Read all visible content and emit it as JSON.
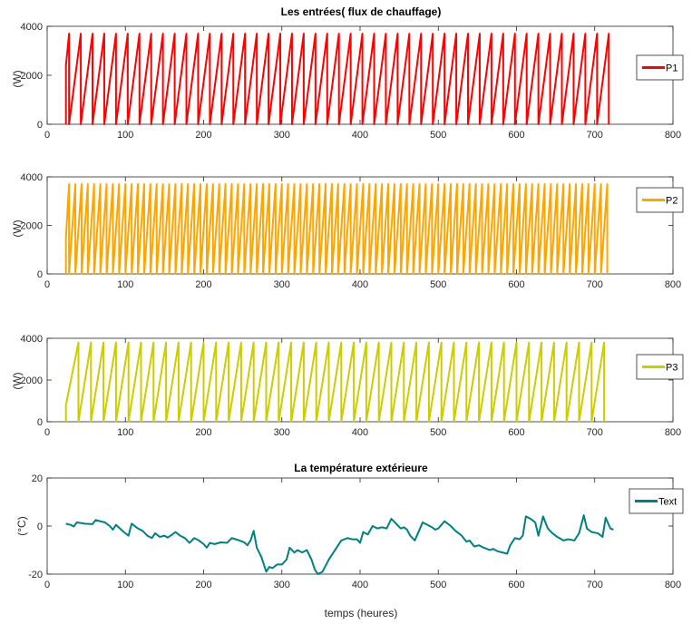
{
  "chart_data": [
    {
      "type": "line",
      "title": "Les entrées( flux de chauffage)",
      "xlabel": "",
      "ylabel": "(W)",
      "xlim": [
        0,
        800
      ],
      "ylim": [
        0,
        4000
      ],
      "xticks": [
        "0",
        "100",
        "200",
        "300",
        "400",
        "500",
        "600",
        "700",
        "800"
      ],
      "yticks": [
        "0",
        "2000",
        "4000"
      ],
      "grid": false,
      "legend": "right",
      "series": [
        {
          "name": "P1",
          "color": "#ff0000",
          "pattern": "sawtooth",
          "start": 24,
          "end": 720,
          "period": 15,
          "peak": 3700,
          "first_ramp": [
            [
              24,
              0
            ],
            [
              24,
              2400
            ],
            [
              28,
              3700
            ],
            [
              28,
              0
            ]
          ]
        }
      ]
    },
    {
      "type": "line",
      "title": "",
      "xlabel": "",
      "ylabel": "(W)",
      "xlim": [
        0,
        800
      ],
      "ylim": [
        0,
        4000
      ],
      "xticks": [
        "0",
        "100",
        "200",
        "300",
        "400",
        "500",
        "600",
        "700",
        "800"
      ],
      "yticks": [
        "0",
        "2000",
        "4000"
      ],
      "grid": false,
      "legend": "right",
      "series": [
        {
          "name": "P2",
          "color": "#ffa500",
          "pattern": "sawtooth",
          "start": 24,
          "end": 720,
          "period": 8,
          "peak": 3700,
          "first_ramp": [
            [
              24,
              0
            ],
            [
              24,
              1500
            ],
            [
              28,
              3700
            ],
            [
              28,
              0
            ]
          ]
        }
      ]
    },
    {
      "type": "line",
      "title": "",
      "xlabel": "",
      "ylabel": "(W)",
      "xlim": [
        0,
        800
      ],
      "ylim": [
        0,
        4000
      ],
      "xticks": [
        "0",
        "100",
        "200",
        "300",
        "400",
        "500",
        "600",
        "700",
        "800"
      ],
      "yticks": [
        "0",
        "2000",
        "4000"
      ],
      "grid": false,
      "legend": "right",
      "series": [
        {
          "name": "P3",
          "color": "#cccc00",
          "pattern": "sawtooth",
          "start": 24,
          "end": 720,
          "period": 16,
          "peak": 3800,
          "first_ramp": [
            [
              24,
              0
            ],
            [
              24,
              800
            ],
            [
              40,
              3800
            ],
            [
              40,
              0
            ]
          ]
        }
      ]
    },
    {
      "type": "line",
      "title": "La température extérieure",
      "xlabel": "temps (heures)",
      "ylabel": "(°C)",
      "xlim": [
        0,
        800
      ],
      "ylim": [
        -20,
        20
      ],
      "xticks": [
        "0",
        "100",
        "200",
        "300",
        "400",
        "500",
        "600",
        "700",
        "800"
      ],
      "yticks": [
        "-20",
        "0",
        "20"
      ],
      "grid": false,
      "legend": "right",
      "series": [
        {
          "name": "Text",
          "color": "#008080",
          "points": [
            [
              24,
              1
            ],
            [
              30,
              0.5
            ],
            [
              34,
              -0.2
            ],
            [
              38,
              1.5
            ],
            [
              48,
              1
            ],
            [
              58,
              0.8
            ],
            [
              62,
              2.5
            ],
            [
              70,
              1.8
            ],
            [
              74,
              1.5
            ],
            [
              80,
              0
            ],
            [
              84,
              -1.5
            ],
            [
              88,
              0.5
            ],
            [
              98,
              -2.5
            ],
            [
              104,
              -4
            ],
            [
              108,
              1
            ],
            [
              116,
              -1
            ],
            [
              122,
              -2
            ],
            [
              128,
              -4
            ],
            [
              134,
              -5
            ],
            [
              138,
              -3
            ],
            [
              144,
              -4.5
            ],
            [
              150,
              -4
            ],
            [
              154,
              -4.8
            ],
            [
              160,
              -3.5
            ],
            [
              164,
              -2.5
            ],
            [
              170,
              -4
            ],
            [
              176,
              -5
            ],
            [
              182,
              -7
            ],
            [
              188,
              -5
            ],
            [
              194,
              -6
            ],
            [
              200,
              -7.5
            ],
            [
              204,
              -9
            ],
            [
              208,
              -7
            ],
            [
              214,
              -7.5
            ],
            [
              222,
              -6.8
            ],
            [
              230,
              -7
            ],
            [
              236,
              -5
            ],
            [
              244,
              -5.8
            ],
            [
              252,
              -6.8
            ],
            [
              256,
              -8
            ],
            [
              260,
              -6
            ],
            [
              264,
              -2
            ],
            [
              268,
              -9
            ],
            [
              274,
              -13
            ],
            [
              280,
              -19
            ],
            [
              284,
              -17
            ],
            [
              288,
              -17.5
            ],
            [
              294,
              -16
            ],
            [
              300,
              -16
            ],
            [
              306,
              -14
            ],
            [
              310,
              -9
            ],
            [
              316,
              -11
            ],
            [
              320,
              -10
            ],
            [
              326,
              -11
            ],
            [
              332,
              -10
            ],
            [
              338,
              -14
            ],
            [
              342,
              -18
            ],
            [
              346,
              -20
            ],
            [
              352,
              -19
            ],
            [
              360,
              -14
            ],
            [
              370,
              -9
            ],
            [
              376,
              -6
            ],
            [
              384,
              -5
            ],
            [
              390,
              -5.5
            ],
            [
              396,
              -5.5
            ],
            [
              400,
              -7
            ],
            [
              404,
              -2.5
            ],
            [
              410,
              -3.5
            ],
            [
              416,
              0
            ],
            [
              422,
              -1
            ],
            [
              428,
              -0.5
            ],
            [
              434,
              -1
            ],
            [
              440,
              3
            ],
            [
              446,
              1
            ],
            [
              452,
              -1
            ],
            [
              456,
              -0.5
            ],
            [
              460,
              -1.5
            ],
            [
              464,
              -4
            ],
            [
              470,
              -6
            ],
            [
              474,
              -3
            ],
            [
              480,
              1.5
            ],
            [
              486,
              0.5
            ],
            [
              492,
              -0.5
            ],
            [
              496,
              -1.5
            ],
            [
              500,
              -1
            ],
            [
              508,
              2
            ],
            [
              516,
              0
            ],
            [
              522,
              -2
            ],
            [
              530,
              -4
            ],
            [
              536,
              -6.5
            ],
            [
              540,
              -6
            ],
            [
              546,
              -8.5
            ],
            [
              552,
              -8
            ],
            [
              558,
              -9
            ],
            [
              566,
              -10
            ],
            [
              570,
              -9.5
            ],
            [
              576,
              -10.5
            ],
            [
              582,
              -11
            ],
            [
              588,
              -11.5
            ],
            [
              592,
              -8
            ],
            [
              598,
              -5
            ],
            [
              604,
              -5.5
            ],
            [
              608,
              -4
            ],
            [
              612,
              4
            ],
            [
              618,
              3
            ],
            [
              624,
              1.5
            ],
            [
              628,
              -4
            ],
            [
              634,
              4
            ],
            [
              640,
              -1
            ],
            [
              646,
              -3
            ],
            [
              652,
              -4.5
            ],
            [
              660,
              -6
            ],
            [
              666,
              -5.5
            ],
            [
              674,
              -6
            ],
            [
              680,
              -3
            ],
            [
              686,
              4.5
            ],
            [
              690,
              -1
            ],
            [
              696,
              -2.5
            ],
            [
              704,
              -3
            ],
            [
              710,
              -4.5
            ],
            [
              714,
              3.5
            ],
            [
              720,
              -1
            ],
            [
              724,
              -1.5
            ]
          ]
        }
      ]
    }
  ]
}
